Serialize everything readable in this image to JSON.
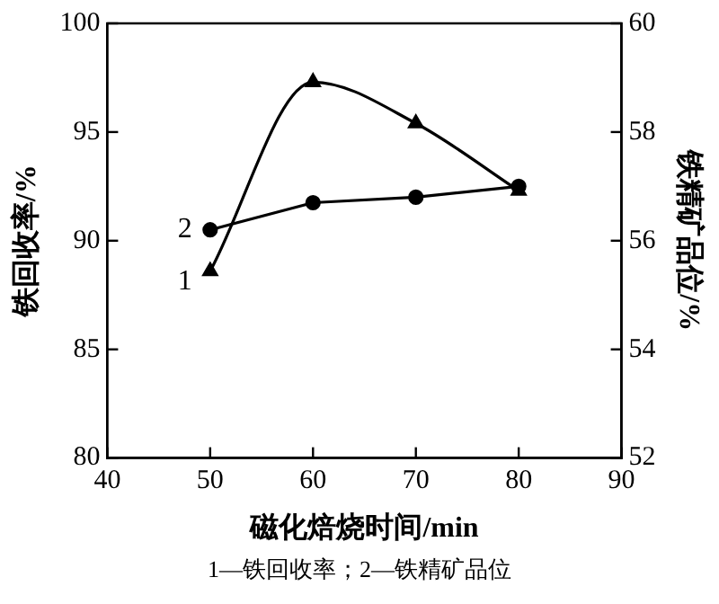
{
  "chart_data": {
    "type": "line",
    "xlabel": "磁化焙烧时间/min",
    "ylabel": "铁回收率/%",
    "y2label": "铁精矿品位/%",
    "x": [
      50,
      60,
      70,
      80
    ],
    "series": [
      {
        "name": "1",
        "color": "#000000",
        "values": [
          88.6,
          97.3,
          95.4,
          92.3
        ],
        "marker": "triangle"
      },
      {
        "name": "2",
        "color": "#000000",
        "values": [
          56.2,
          56.7,
          56.8,
          57.0
        ],
        "marker": "circle",
        "axis": "y2"
      }
    ],
    "xlim": [
      40,
      90
    ],
    "xticks": [
      40,
      50,
      60,
      70,
      80,
      90
    ],
    "ylim": [
      80,
      100
    ],
    "yticks": [
      80,
      85,
      90,
      95,
      100
    ],
    "y2lim": [
      52,
      60
    ],
    "y2ticks": [
      52,
      54,
      56,
      58,
      60
    ],
    "grid": false,
    "legend": false,
    "line_style": "solid",
    "annotations": [
      "1—铁回收率；2—铁精矿品位"
    ]
  }
}
